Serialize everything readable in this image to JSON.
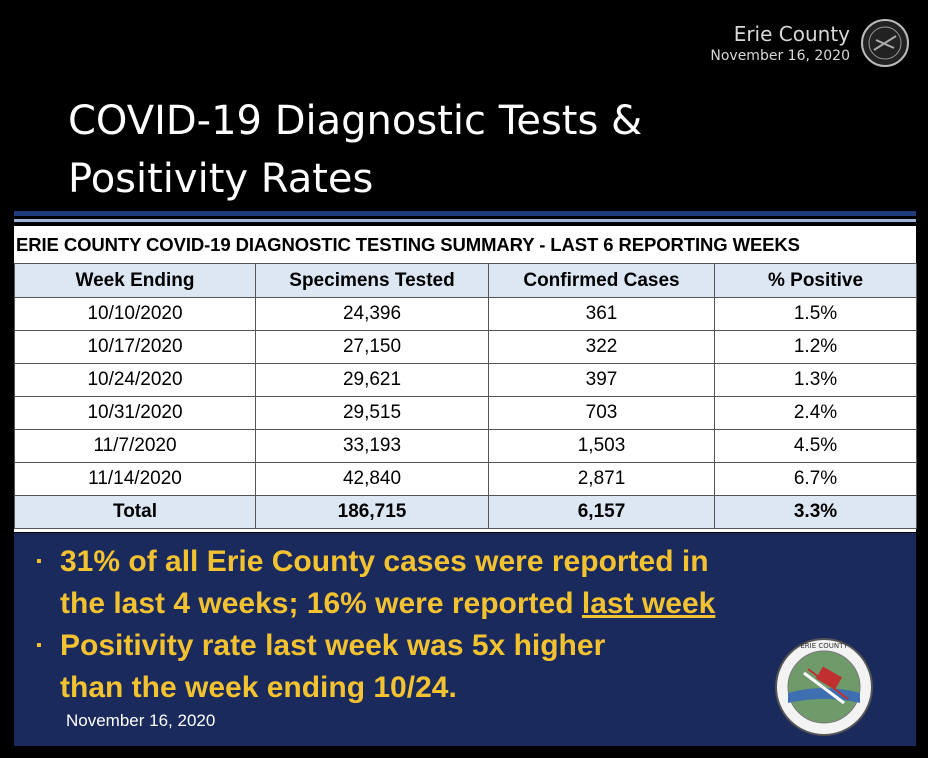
{
  "header": {
    "county": "Erie County",
    "date": "November 16, 2020"
  },
  "title": {
    "line1": "COVID-19 Diagnostic Tests &",
    "line2": "Positivity Rates"
  },
  "table": {
    "caption": "ERIE COUNTY COVID-19 DIAGNOSTIC TESTING SUMMARY - LAST 6 REPORTING WEEKS",
    "columns": [
      "Week Ending",
      "Specimens Tested",
      "Confirmed Cases",
      "% Positive"
    ],
    "rows": [
      [
        "10/10/2020",
        "24,396",
        "361",
        "1.5%"
      ],
      [
        "10/17/2020",
        "27,150",
        "322",
        "1.2%"
      ],
      [
        "10/24/2020",
        "29,621",
        "397",
        "1.3%"
      ],
      [
        "10/31/2020",
        "29,515",
        "703",
        "2.4%"
      ],
      [
        "11/7/2020",
        "33,193",
        "1,503",
        "4.5%"
      ],
      [
        "11/14/2020",
        "42,840",
        "2,871",
        "6.7%"
      ]
    ],
    "total": [
      "Total",
      "186,715",
      "6,157",
      "3.3%"
    ]
  },
  "bullets": {
    "b1_line1": "31% of all Erie County cases were reported in",
    "b1_line2_prefix": "the last 4 weeks; 16% were reported ",
    "b1_line2_underlined": "last week",
    "b2_line1": "Positivity rate last week was 5x higher",
    "b2_line2": "than the week ending 10/24.",
    "marker": "▪"
  },
  "footer_date": "November 16, 2020",
  "seal_text": "ERIE COUNTY"
}
